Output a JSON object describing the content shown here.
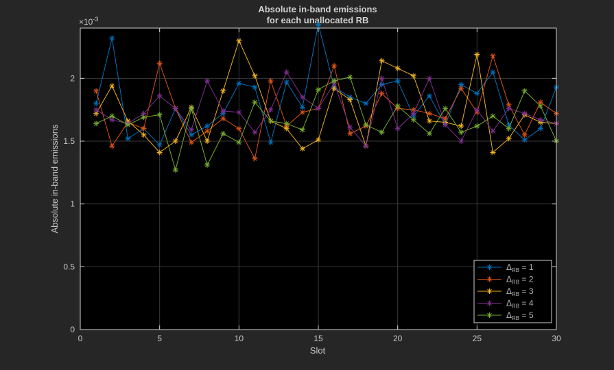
{
  "chart_data": {
    "type": "line",
    "title": [
      "Absolute in-band emissions",
      "for each unallocated RB"
    ],
    "xlabel": "Slot",
    "ylabel": "Absolute in-band emissions",
    "y_exponent_label": "×10",
    "y_exponent_power": "-3",
    "xlim": [
      0,
      30
    ],
    "ylim": [
      0,
      2.4
    ],
    "xticks": [
      0,
      5,
      10,
      15,
      20,
      25,
      30
    ],
    "yticks": [
      0,
      0.5,
      1,
      1.5,
      2
    ],
    "ytick_labels": [
      "0",
      "0.5",
      "1",
      "1.5",
      "2"
    ],
    "grid": true,
    "legend_location": "bottom-right",
    "legend_prefix": "Δ",
    "legend_subscript": "RB",
    "legend_suffix": " = ",
    "x": [
      1,
      2,
      3,
      4,
      5,
      6,
      7,
      8,
      9,
      10,
      11,
      12,
      13,
      14,
      15,
      16,
      17,
      18,
      19,
      20,
      21,
      22,
      23,
      24,
      25,
      26,
      27,
      28,
      29,
      30
    ],
    "series": [
      {
        "name": "1",
        "color": "#0072bd",
        "values": [
          1.8,
          2.32,
          1.52,
          1.6,
          1.47,
          1.76,
          1.55,
          1.62,
          1.72,
          1.96,
          1.93,
          1.49,
          1.97,
          1.77,
          2.43,
          1.93,
          1.85,
          1.8,
          1.95,
          1.98,
          1.7,
          1.86,
          1.63,
          1.95,
          1.88,
          2.05,
          1.63,
          1.51,
          1.6,
          1.93
        ]
      },
      {
        "name": "2",
        "color": "#d95319",
        "values": [
          1.9,
          1.46,
          1.65,
          1.6,
          2.12,
          1.76,
          1.49,
          1.58,
          1.68,
          1.6,
          1.36,
          1.98,
          1.62,
          1.73,
          1.76,
          2.1,
          1.56,
          1.62,
          1.88,
          1.76,
          1.75,
          1.72,
          1.68,
          1.92,
          1.73,
          2.18,
          1.79,
          1.55,
          1.81,
          1.72
        ]
      },
      {
        "name": "3",
        "color": "#edb120",
        "values": [
          1.72,
          1.94,
          1.66,
          1.55,
          1.41,
          1.5,
          1.77,
          1.5,
          1.9,
          2.3,
          2.02,
          1.66,
          1.6,
          1.44,
          1.51,
          1.92,
          1.83,
          1.46,
          2.14,
          2.08,
          2.02,
          1.66,
          1.65,
          1.62,
          2.19,
          1.41,
          1.52,
          1.71,
          1.65,
          1.64
        ]
      },
      {
        "name": "4",
        "color": "#7e2f8e",
        "values": [
          1.75,
          1.67,
          1.64,
          1.72,
          1.86,
          1.76,
          1.59,
          1.98,
          1.74,
          1.73,
          1.57,
          1.75,
          2.05,
          1.85,
          1.76,
          1.96,
          1.61,
          1.46,
          2.0,
          1.6,
          1.72,
          2.0,
          1.63,
          1.5,
          1.75,
          1.58,
          1.76,
          1.72,
          1.67,
          1.64
        ]
      },
      {
        "name": "5",
        "color": "#77ac30",
        "values": [
          1.64,
          1.7,
          1.63,
          1.69,
          1.71,
          1.27,
          1.76,
          1.31,
          1.56,
          1.49,
          1.81,
          1.66,
          1.64,
          1.59,
          1.91,
          1.98,
          2.01,
          1.63,
          1.57,
          1.78,
          1.67,
          1.56,
          1.76,
          1.57,
          1.62,
          1.7,
          1.6,
          1.9,
          1.78,
          1.5
        ]
      }
    ]
  }
}
